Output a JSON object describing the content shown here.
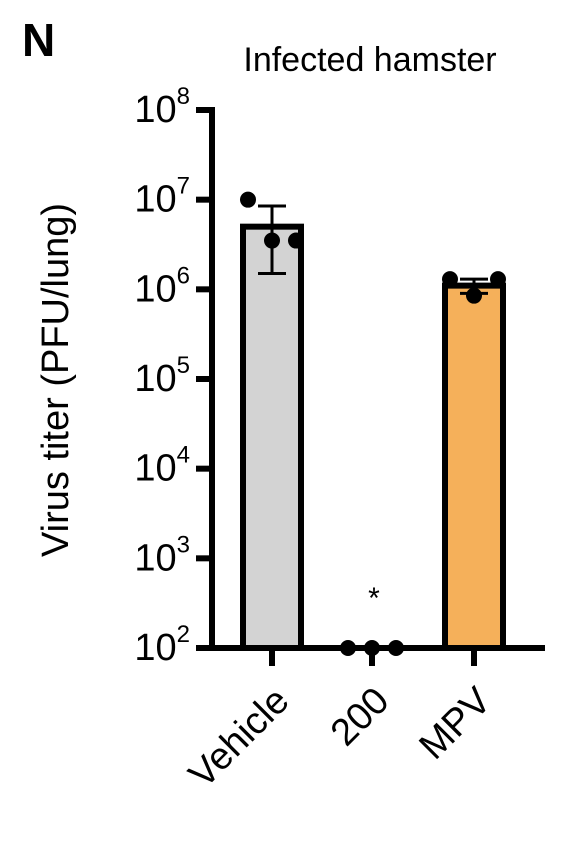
{
  "chart_data": {
    "type": "bar",
    "panel_label": "N",
    "title": "Infected hamster",
    "y_label": "Virus titer (PFU/lung)",
    "log_y": true,
    "ylim": [
      100,
      100000000
    ],
    "yticks": [
      {
        "value": 100,
        "label": "10",
        "exp": "2"
      },
      {
        "value": 1000,
        "label": "10",
        "exp": "3"
      },
      {
        "value": 10000,
        "label": "10",
        "exp": "4"
      },
      {
        "value": 100000,
        "label": "10",
        "exp": "5"
      },
      {
        "value": 1000000,
        "label": "10",
        "exp": "6"
      },
      {
        "value": 10000000,
        "label": "10",
        "exp": "7"
      },
      {
        "value": 100000000,
        "label": "10",
        "exp": "8"
      }
    ],
    "categories": [
      "Vehicle",
      "200",
      "MPV"
    ],
    "values": [
      5000000,
      null,
      1100000
    ],
    "errors": [
      3500000,
      null,
      200000
    ],
    "colors": [
      "#d3d3d3",
      null,
      "#f5b05a"
    ],
    "points": [
      [
        10000000,
        3500000,
        3500000
      ],
      [
        100,
        100,
        100
      ],
      [
        1300000,
        850000,
        1300000
      ]
    ],
    "significance": [
      null,
      "*",
      null
    ]
  }
}
